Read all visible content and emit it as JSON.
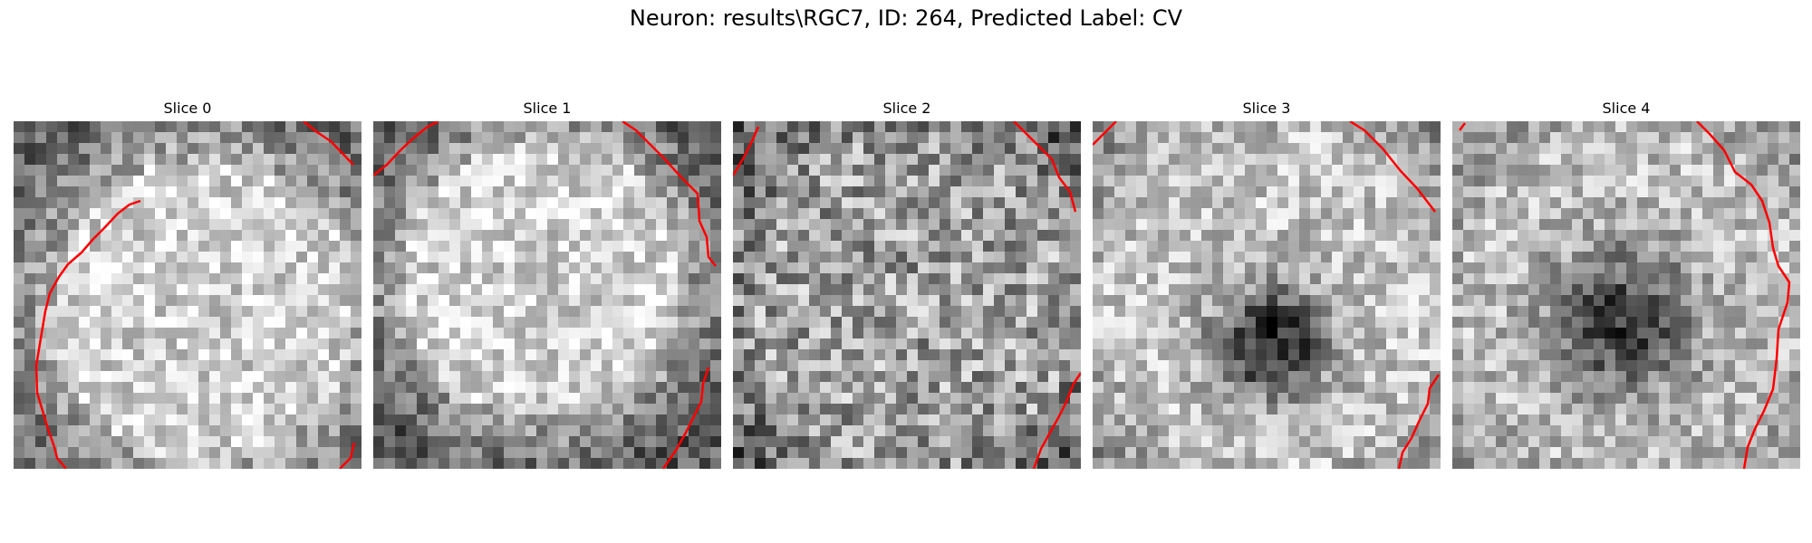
{
  "figure": {
    "title": "Neuron: results\\RGC7, ID: 264, Predicted Label: CV"
  },
  "colors": {
    "boundary": "#ff0000",
    "background": "#ffffff"
  },
  "panels": [
    {
      "title": "Slice 0"
    },
    {
      "title": "Slice 1"
    },
    {
      "title": "Slice 2"
    },
    {
      "title": "Slice 3"
    },
    {
      "title": "Slice 4"
    }
  ]
}
